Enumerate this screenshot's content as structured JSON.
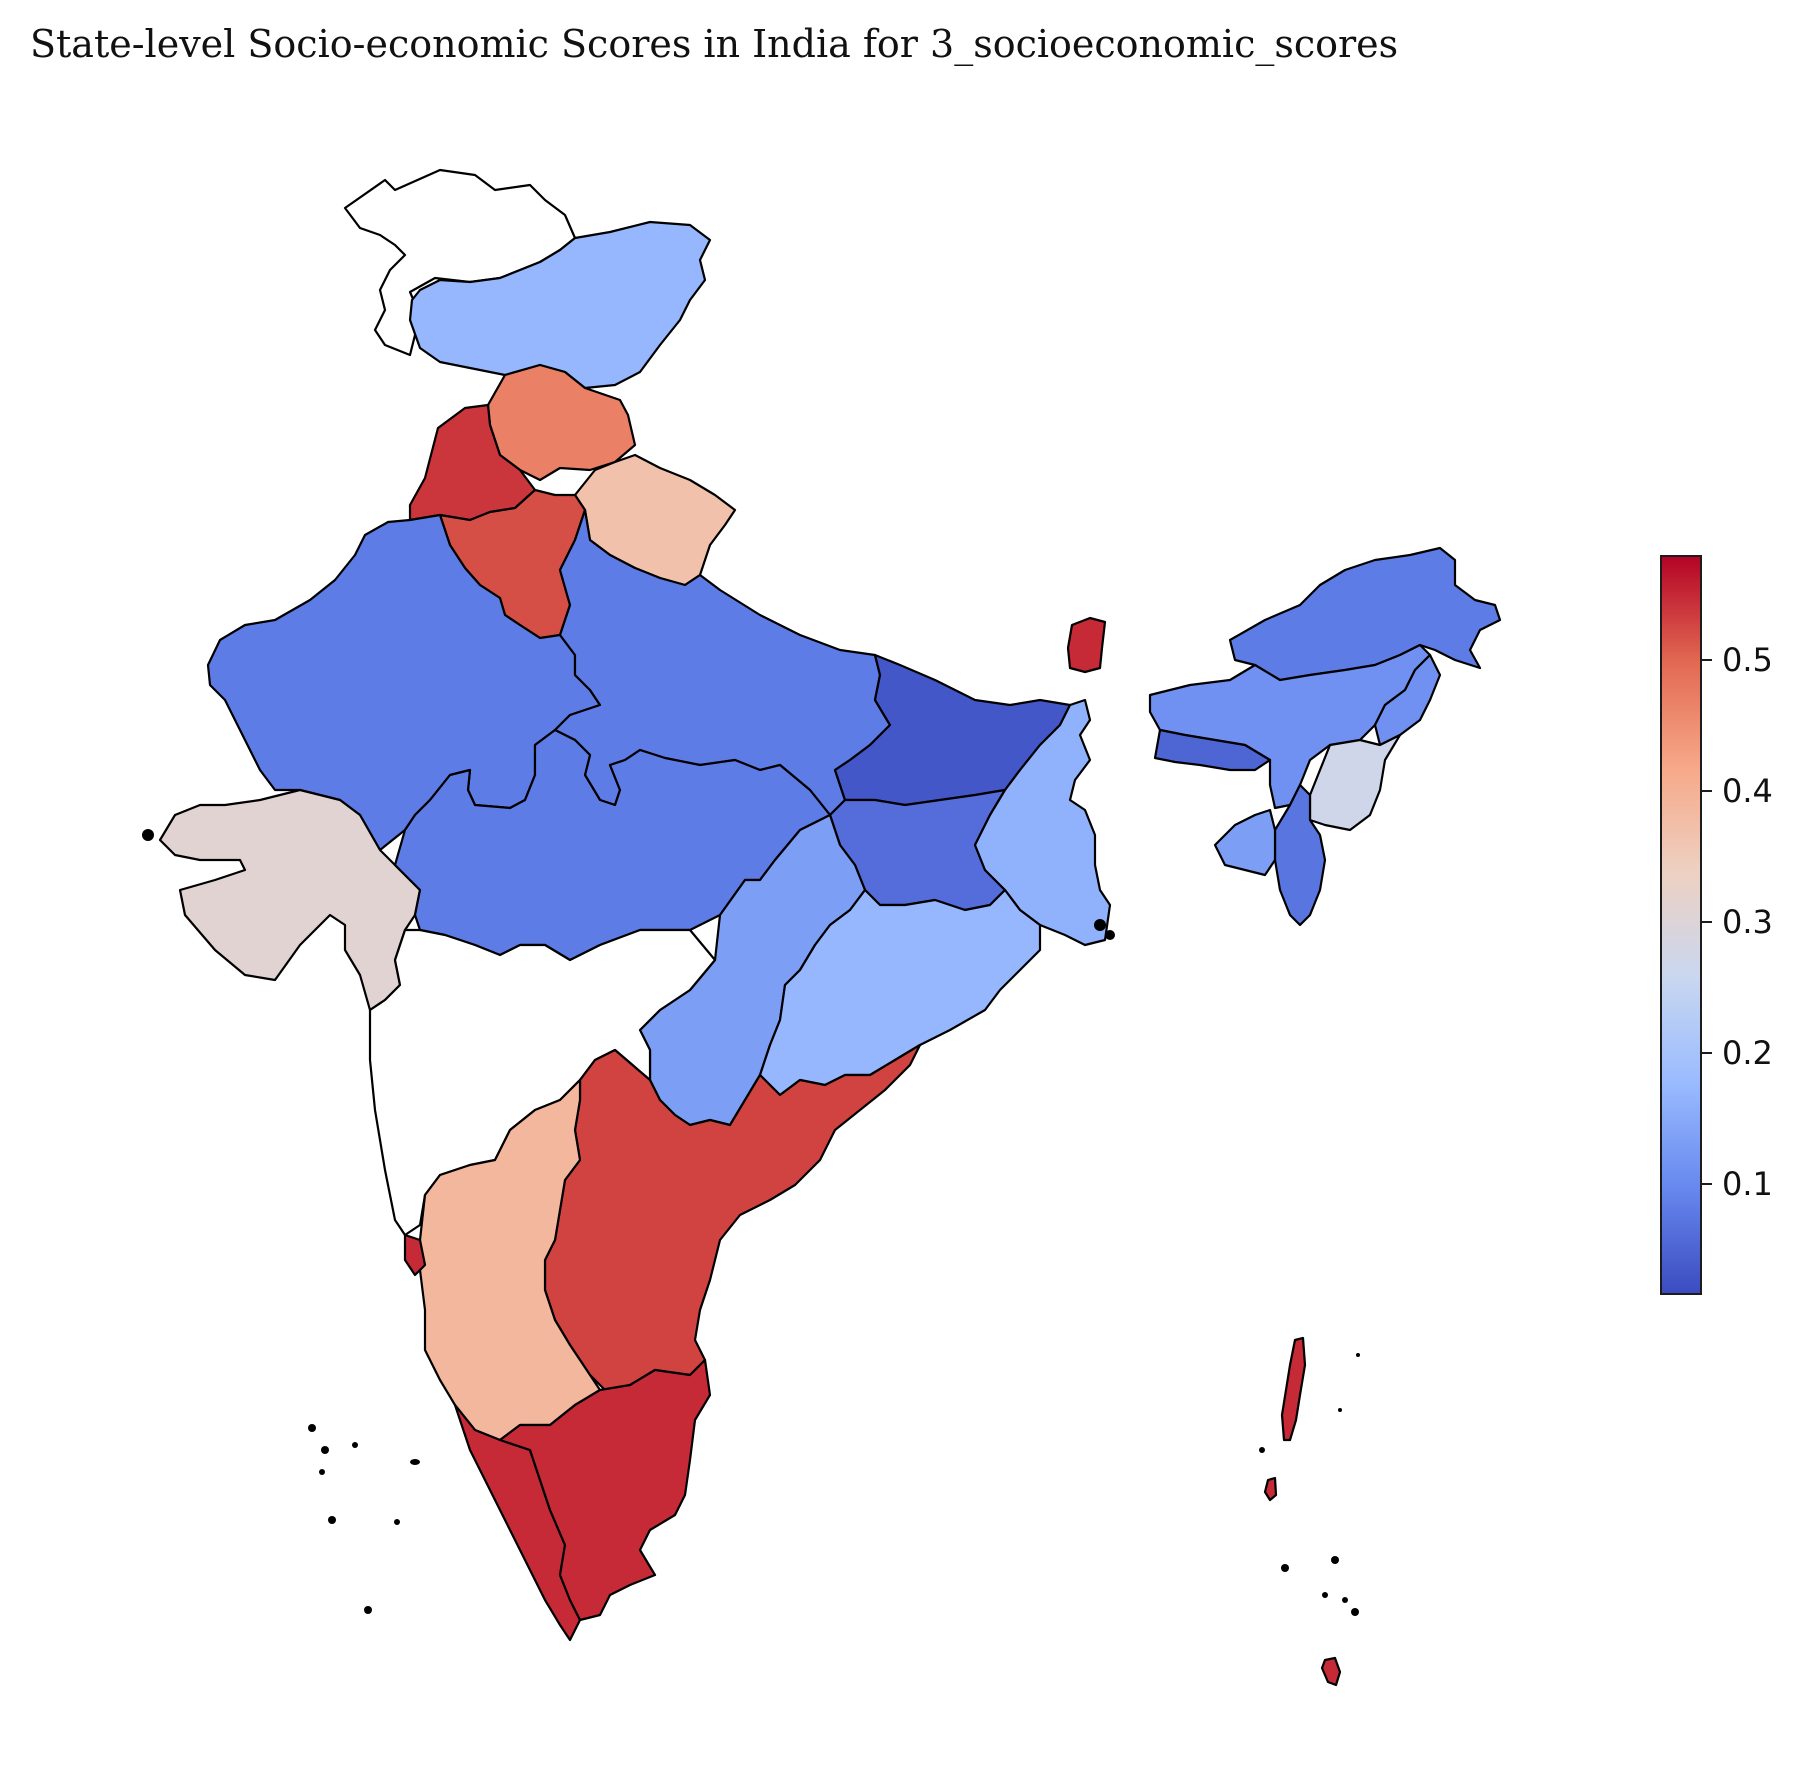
{
  "title": "State-level Socio-economic Scores in India for 3_socioeconomic_scores",
  "colormap": {
    "name": "coolwarm",
    "stops": [
      "#3b4cc0",
      "#6788ee",
      "#9abbff",
      "#c9d7f0",
      "#edd1c2",
      "#f7a889",
      "#e26952",
      "#b40426"
    ]
  },
  "colorbar": {
    "range": [
      0.015,
      0.58
    ],
    "ticks": [
      {
        "value": 0.1,
        "label": "0.1"
      },
      {
        "value": 0.2,
        "label": "0.2"
      },
      {
        "value": 0.3,
        "label": "0.3"
      },
      {
        "value": 0.4,
        "label": "0.4"
      },
      {
        "value": 0.5,
        "label": "0.5"
      }
    ]
  },
  "no_data_fill": "#ffffff",
  "regions": [
    {
      "id": "ladakh-jk-north",
      "score": null
    },
    {
      "id": "jammu-kashmir",
      "score": 0.17
    },
    {
      "id": "himachal-pradesh",
      "score": 0.47
    },
    {
      "id": "punjab",
      "score": 0.54
    },
    {
      "id": "uttarakhand",
      "score": 0.37
    },
    {
      "id": "haryana",
      "score": 0.52
    },
    {
      "id": "rajasthan",
      "score": 0.08
    },
    {
      "id": "uttar-pradesh",
      "score": 0.08
    },
    {
      "id": "gujarat",
      "score": 0.31
    },
    {
      "id": "madhya-pradesh",
      "score": 0.08
    },
    {
      "id": "bihar",
      "score": 0.03
    },
    {
      "id": "jharkhand",
      "score": 0.06
    },
    {
      "id": "west-bengal",
      "score": 0.16
    },
    {
      "id": "chhattisgarh",
      "score": 0.13
    },
    {
      "id": "odisha",
      "score": 0.17
    },
    {
      "id": "maharashtra",
      "score": null
    },
    {
      "id": "telangana-andhra",
      "score": 0.53
    },
    {
      "id": "karnataka",
      "score": 0.39
    },
    {
      "id": "kerala",
      "score": 0.55
    },
    {
      "id": "tamil-nadu",
      "score": 0.55
    },
    {
      "id": "sikkim",
      "score": 0.55
    },
    {
      "id": "arunachal-pradesh",
      "score": 0.08
    },
    {
      "id": "assam",
      "score": 0.11
    },
    {
      "id": "meghalaya",
      "score": 0.05
    },
    {
      "id": "nagaland",
      "score": 0.11
    },
    {
      "id": "manipur",
      "score": 0.27
    },
    {
      "id": "mizoram",
      "score": 0.07
    },
    {
      "id": "tripura",
      "score": 0.13
    },
    {
      "id": "goa",
      "score": 0.55
    },
    {
      "id": "andaman-nicobar",
      "score": 0.55
    }
  ]
}
